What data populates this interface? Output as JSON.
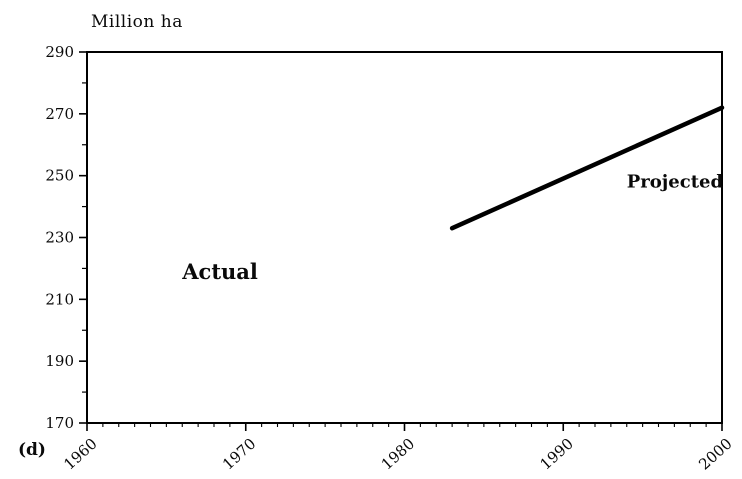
{
  "figure": {
    "y_axis_title": "Million ha",
    "panel_label": "(d)"
  },
  "chart_data": {
    "type": "line",
    "title": "",
    "xlabel": "",
    "ylabel": "Million ha",
    "xlim": [
      1960,
      2000
    ],
    "ylim": [
      170,
      290
    ],
    "xticks": [
      1960,
      1970,
      1980,
      1990,
      2000
    ],
    "x_minor_tick_step": 1,
    "yticks": [
      170,
      190,
      210,
      230,
      250,
      270,
      290
    ],
    "y_minor_ticks": [
      180,
      200,
      220,
      240,
      260,
      280
    ],
    "grid": false,
    "legend_position": "inline-annotations",
    "axis_color": "#000000",
    "background": "#ffffff",
    "series": [
      {
        "name": "Projected",
        "x": [
          1983,
          2000
        ],
        "y": [
          233,
          272
        ],
        "color": "#000000",
        "width": 4.5
      }
    ],
    "annotations": [
      {
        "text": "Actual",
        "x": 1966,
        "y": 219,
        "bold": true,
        "size": 21
      },
      {
        "text": "Projected",
        "x": 1994,
        "y": 248,
        "bold": true,
        "size": 18
      }
    ]
  }
}
